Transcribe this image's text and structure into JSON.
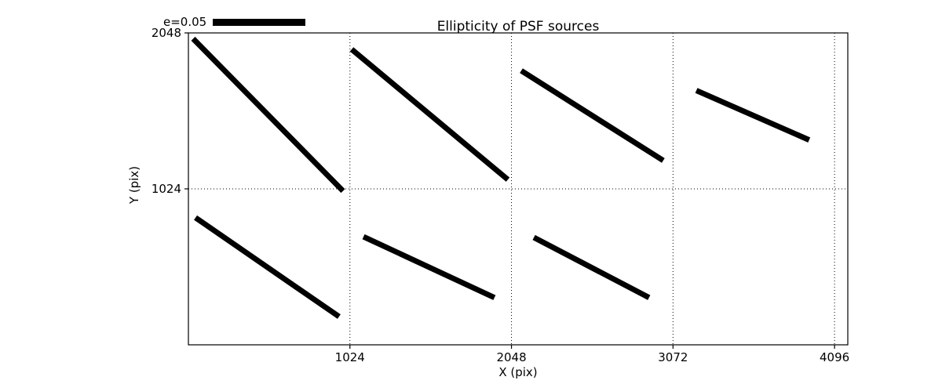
{
  "chart_data": {
    "type": "line-segments (ellipticity whisker/stick plot)",
    "title": "Ellipticity of PSF sources",
    "xlabel": "X (pix)",
    "ylabel": "Y (pix)",
    "xlim": [
      0,
      4180
    ],
    "ylim": [
      0,
      2048
    ],
    "xticks": [
      1024,
      2048,
      3072,
      4096
    ],
    "yticks": [
      1024,
      2048
    ],
    "grid": true,
    "grid_style": "dotted",
    "legend": {
      "label": "e=0.05",
      "position": "top-left, above axes"
    },
    "line_color": "#000000",
    "background": "#ffffff",
    "segments": [
      {
        "x1": 30,
        "y1": 2010,
        "x2": 980,
        "y2": 1010
      },
      {
        "x1": 1035,
        "y1": 1940,
        "x2": 2025,
        "y2": 1085
      },
      {
        "x1": 2110,
        "y1": 1800,
        "x2": 3010,
        "y2": 1210
      },
      {
        "x1": 3220,
        "y1": 1670,
        "x2": 3935,
        "y2": 1345
      },
      {
        "x1": 45,
        "y1": 835,
        "x2": 955,
        "y2": 185
      },
      {
        "x1": 1110,
        "y1": 710,
        "x2": 1940,
        "y2": 310
      },
      {
        "x1": 2190,
        "y1": 705,
        "x2": 2920,
        "y2": 310
      }
    ]
  }
}
